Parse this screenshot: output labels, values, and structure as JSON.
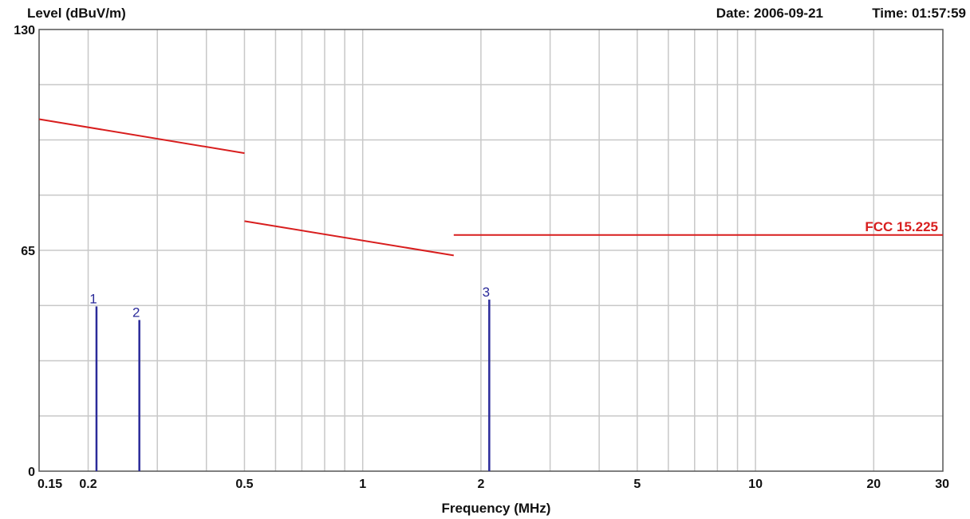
{
  "header": {
    "y_unit_label": "Level (dBuV/m)",
    "date_label": "Date: 2006-09-21",
    "time_label": "Time: 01:57:59"
  },
  "chart_data": {
    "type": "line",
    "title": "",
    "xlabel": "Frequency (MHz)",
    "ylabel": "Level (dBuV/m)",
    "x_scale": "log",
    "xlim": [
      0.15,
      30
    ],
    "ylim": [
      0,
      130
    ],
    "grid": true,
    "x_ticks": [
      {
        "value": 0.15,
        "label": "0.15"
      },
      {
        "value": 0.2,
        "label": "0.2"
      },
      {
        "value": 0.5,
        "label": "0.5"
      },
      {
        "value": 1,
        "label": "1"
      },
      {
        "value": 2,
        "label": "2"
      },
      {
        "value": 5,
        "label": "5"
      },
      {
        "value": 10,
        "label": "10"
      },
      {
        "value": 20,
        "label": "20"
      },
      {
        "value": 30,
        "label": "30"
      }
    ],
    "x_grid_values": [
      0.2,
      0.3,
      0.4,
      0.5,
      0.6,
      0.7,
      0.8,
      0.9,
      1,
      2,
      3,
      4,
      5,
      6,
      7,
      8,
      9,
      10,
      20
    ],
    "y_ticks": [
      {
        "value": 0,
        "label": "0"
      },
      {
        "value": 65,
        "label": "65"
      },
      {
        "value": 130,
        "label": "130"
      }
    ],
    "y_grid_values": [
      16.25,
      32.5,
      48.75,
      65,
      81.25,
      97.5,
      113.75
    ],
    "limit_series": {
      "name": "FCC 15.225",
      "color": "#d81e1e",
      "segments": [
        [
          [
            0.15,
            103.6
          ],
          [
            0.5,
            93.6
          ]
        ],
        [
          [
            0.5,
            73.6
          ],
          [
            1.705,
            63.5
          ]
        ],
        [
          [
            1.705,
            69.5
          ],
          [
            30,
            69.5
          ]
        ]
      ]
    },
    "markers": {
      "color": "#2b2b9a",
      "points": [
        {
          "label": "1",
          "x": 0.21,
          "y": 48.5
        },
        {
          "label": "2",
          "x": 0.27,
          "y": 44.5
        },
        {
          "label": "3",
          "x": 2.1,
          "y": 50.5
        }
      ]
    }
  }
}
